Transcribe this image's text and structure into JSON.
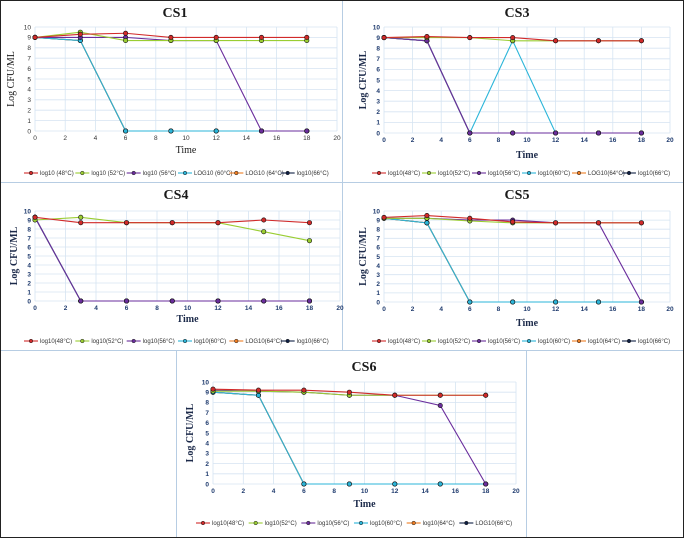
{
  "colors": {
    "t48": "#d12a2a",
    "t52": "#9acd32",
    "t56": "#6a2d9c",
    "t60": "#2bb5d9",
    "t64": "#ef7d22",
    "t66": "#0f1f44",
    "grid": "#d6e4f2",
    "marker": "#111111"
  },
  "chart_data": [
    {
      "id": "cs1",
      "type": "line",
      "title": "CS1",
      "xlabel": "Time",
      "ylabel": "Log CFU/ML",
      "xlim": [
        0,
        20
      ],
      "ylim": [
        0,
        10
      ],
      "xticks": [
        "0",
        "2",
        "4",
        "6",
        "8",
        "10",
        "12",
        "14",
        "16",
        "18",
        "20"
      ],
      "yticks": [
        "0",
        "1",
        "2",
        "3",
        "4",
        "5",
        "6",
        "7",
        "8",
        "9",
        "10"
      ],
      "grid": true,
      "legend": "bottom",
      "x": [
        0,
        3,
        6,
        9,
        12,
        15,
        18
      ],
      "series": [
        {
          "name": "log10 (48°C)",
          "color_key": "t48",
          "values": [
            9,
            9.3,
            9.4,
            9,
            9,
            9,
            9
          ]
        },
        {
          "name": "log10 (52°C)",
          "color_key": "t52",
          "values": [
            9,
            9.5,
            8.7,
            8.7,
            8.7,
            8.7,
            8.7
          ]
        },
        {
          "name": "log10 (56°C)",
          "color_key": "t56",
          "values": [
            9,
            9,
            9,
            8.7,
            8.7,
            0,
            0
          ]
        },
        {
          "name": "LOG10 (60°C)",
          "color_key": "t60",
          "values": [
            9,
            8.7,
            0,
            0,
            0,
            0,
            0
          ]
        },
        {
          "name": "LOG10 (64°C)",
          "color_key": "t64",
          "values": [
            9,
            8.7,
            0,
            0,
            0,
            0,
            0
          ]
        },
        {
          "name": "log10(66°C)",
          "color_key": "t66",
          "values": [
            9,
            8.7,
            0,
            0,
            0,
            0,
            0
          ]
        }
      ]
    },
    {
      "id": "cs3",
      "type": "line",
      "title": "CS3",
      "xlabel": "Time",
      "ylabel": "Log CFU/ML",
      "xlim": [
        0,
        20
      ],
      "ylim": [
        0,
        10
      ],
      "xticks": [
        "0",
        "2",
        "4",
        "6",
        "8",
        "10",
        "12",
        "14",
        "16",
        "18",
        "20"
      ],
      "yticks": [
        "0",
        "1",
        "2",
        "3",
        "4",
        "5",
        "6",
        "7",
        "8",
        "9",
        "10"
      ],
      "grid": true,
      "legend": "bottom",
      "x": [
        0,
        3,
        6,
        9,
        12,
        15,
        18
      ],
      "series": [
        {
          "name": "log10(48°C)",
          "color_key": "t48",
          "values": [
            9,
            9.1,
            9,
            9,
            8.7,
            8.7,
            8.7
          ]
        },
        {
          "name": "log10(52°C)",
          "color_key": "t52",
          "values": [
            9,
            9,
            9,
            8.7,
            8.7,
            8.7,
            8.7
          ]
        },
        {
          "name": "log10(56°C)",
          "color_key": "t56",
          "values": [
            9,
            8.7,
            0,
            0,
            0,
            0,
            0
          ]
        },
        {
          "name": "log10(60°C)",
          "color_key": "t60",
          "values": [
            9,
            8.7,
            0,
            8.7,
            0,
            0,
            0
          ]
        },
        {
          "name": "LOG10(64°C)",
          "color_key": "t64",
          "values": [
            9,
            8.7,
            0,
            0,
            0,
            0,
            0
          ]
        },
        {
          "name": "log10(66°C)",
          "color_key": "t66",
          "values": [
            9,
            8.7,
            0,
            0,
            0,
            0,
            0
          ]
        }
      ]
    },
    {
      "id": "cs4",
      "type": "line",
      "title": "CS4",
      "xlabel": "Time",
      "ylabel": "Log CFU/ML",
      "xlim": [
        0,
        20
      ],
      "ylim": [
        0,
        10
      ],
      "xticks": [
        "0",
        "2",
        "4",
        "6",
        "8",
        "10",
        "12",
        "14",
        "16",
        "18",
        "20"
      ],
      "yticks": [
        "0",
        "1",
        "2",
        "3",
        "4",
        "5",
        "6",
        "7",
        "8",
        "9",
        "10"
      ],
      "grid": true,
      "legend": "bottom",
      "x": [
        0,
        3,
        6,
        9,
        12,
        15,
        18
      ],
      "series": [
        {
          "name": "log10(48°C)",
          "color_key": "t48",
          "values": [
            9.3,
            8.7,
            8.7,
            8.7,
            8.7,
            9,
            8.7
          ]
        },
        {
          "name": "log10(52°C)",
          "color_key": "t52",
          "values": [
            9,
            9.3,
            8.7,
            8.7,
            8.7,
            7.7,
            6.7
          ]
        },
        {
          "name": "log10(56°C)",
          "color_key": "t56",
          "values": [
            9.3,
            0,
            0,
            0,
            0,
            0,
            0
          ]
        },
        {
          "name": "log10(60°C)",
          "color_key": "t60",
          "values": [
            9.3,
            0,
            0,
            0,
            0,
            0,
            0
          ]
        },
        {
          "name": "LOG10(64°C)",
          "color_key": "t64",
          "values": [
            9.3,
            0,
            0,
            0,
            0,
            0,
            0
          ]
        },
        {
          "name": "log10(66°C)",
          "color_key": "t66",
          "values": [
            9.3,
            0,
            0,
            0,
            0,
            0,
            0
          ]
        }
      ]
    },
    {
      "id": "cs5",
      "type": "line",
      "title": "CS5",
      "xlabel": "Time",
      "ylabel": "Log CFU/ML",
      "xlim": [
        0,
        20
      ],
      "ylim": [
        0,
        10
      ],
      "xticks": [
        "0",
        "2",
        "4",
        "6",
        "8",
        "10",
        "12",
        "14",
        "16",
        "18",
        "20"
      ],
      "yticks": [
        "0",
        "1",
        "2",
        "3",
        "4",
        "5",
        "6",
        "7",
        "8",
        "9",
        "10"
      ],
      "grid": true,
      "legend": "bottom",
      "x": [
        0,
        3,
        6,
        9,
        12,
        15,
        18
      ],
      "series": [
        {
          "name": "log10(48°C)",
          "color_key": "t48",
          "values": [
            9.3,
            9.5,
            9.2,
            8.8,
            8.7,
            8.7,
            8.7
          ]
        },
        {
          "name": "log10(52°C)",
          "color_key": "t52",
          "values": [
            9.2,
            9.2,
            8.9,
            8.7,
            8.7,
            8.7,
            8.7
          ]
        },
        {
          "name": "log10(56°C)",
          "color_key": "t56",
          "values": [
            9.2,
            9.2,
            9,
            9,
            8.7,
            8.7,
            0
          ]
        },
        {
          "name": "log10(60°C)",
          "color_key": "t60",
          "values": [
            9.2,
            8.7,
            0,
            0,
            0,
            0,
            0
          ]
        },
        {
          "name": "log10(64°C)",
          "color_key": "t64",
          "values": [
            9.2,
            8.7,
            0,
            0,
            0,
            0,
            0
          ]
        },
        {
          "name": "log10(66°C)",
          "color_key": "t66",
          "values": [
            9.2,
            8.7,
            0,
            0,
            0,
            0,
            0
          ]
        }
      ]
    },
    {
      "id": "cs6",
      "type": "line",
      "title": "CS6",
      "xlabel": "Time",
      "ylabel": "Log CFU/ML",
      "xlim": [
        0,
        20
      ],
      "ylim": [
        0,
        10
      ],
      "xticks": [
        "0",
        "2",
        "4",
        "6",
        "8",
        "10",
        "12",
        "14",
        "16",
        "18",
        "20"
      ],
      "yticks": [
        "0",
        "1",
        "2",
        "3",
        "4",
        "5",
        "6",
        "7",
        "8",
        "9",
        "10"
      ],
      "grid": true,
      "legend": "bottom",
      "x": [
        0,
        3,
        6,
        9,
        12,
        15,
        18
      ],
      "series": [
        {
          "name": "log10(48°C)",
          "color_key": "t48",
          "values": [
            9.3,
            9.2,
            9.2,
            9,
            8.7,
            8.7,
            8.7
          ]
        },
        {
          "name": "log10(52°C)",
          "color_key": "t52",
          "values": [
            9.1,
            9.1,
            9,
            8.7,
            8.7,
            8.7,
            8.7
          ]
        },
        {
          "name": "log10(56°C)",
          "color_key": "t56",
          "values": [
            9.2,
            9.1,
            9,
            8.7,
            8.7,
            7.7,
            0
          ]
        },
        {
          "name": "log10(60°C)",
          "color_key": "t60",
          "values": [
            9,
            8.7,
            0,
            0,
            0,
            0,
            0
          ]
        },
        {
          "name": "log10(64°C)",
          "color_key": "t64",
          "values": [
            9,
            8.7,
            0,
            0,
            0,
            0,
            0
          ]
        },
        {
          "name": "LOG10(66°C)",
          "color_key": "t66",
          "values": [
            9,
            8.7,
            0,
            0,
            0,
            0,
            0
          ]
        }
      ]
    }
  ]
}
